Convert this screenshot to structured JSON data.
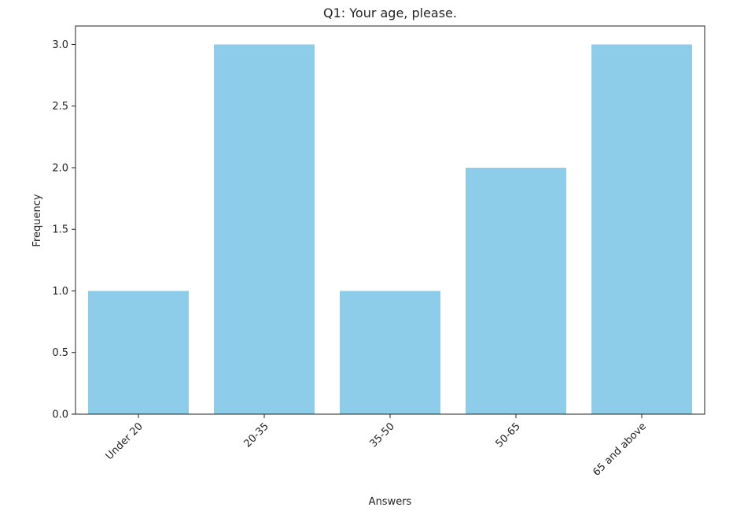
{
  "chart_data": {
    "type": "bar",
    "title": "Q1: Your age, please.",
    "xlabel": "Answers",
    "ylabel": "Frequency",
    "categories": [
      "Under 20",
      "20-35",
      "35-50",
      "50-65",
      "65 and above"
    ],
    "values": [
      1,
      3,
      1,
      2,
      3
    ],
    "ylim": [
      0,
      3.15
    ],
    "yticks": [
      "0.0",
      "0.5",
      "1.0",
      "1.5",
      "2.0",
      "2.5",
      "3.0"
    ],
    "bar_color": "#8ecdea",
    "grid": false,
    "legend": "none"
  }
}
